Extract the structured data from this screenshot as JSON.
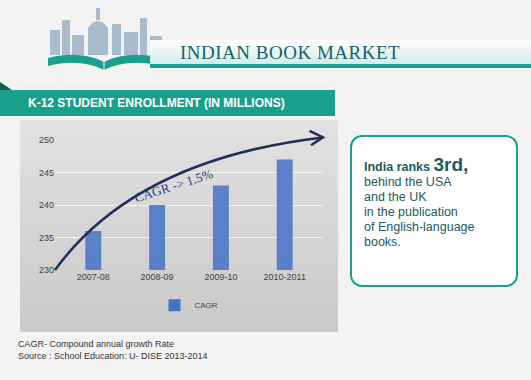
{
  "header": {
    "title": "INDIAN BOOK MARKET"
  },
  "chart_data": {
    "type": "bar",
    "title": "K-12 STUDENT ENROLLMENT (IN MILLIONS)",
    "categories": [
      "2007-08",
      "2008-09",
      "2009-10",
      "2010-2011"
    ],
    "series": [
      {
        "name": "CAGR",
        "color": "#4472c4",
        "values": [
          236,
          240,
          243,
          247
        ]
      }
    ],
    "ylim": [
      230,
      250
    ],
    "yticks": [
      230,
      235,
      240,
      245,
      250
    ],
    "grid": true,
    "data_labels": true,
    "legend": "bottom",
    "annotations": [
      {
        "text": "CAGR -> 1.5%"
      }
    ]
  },
  "callout": {
    "text_before": "India ranks",
    "emphasis": "3rd,",
    "lines": [
      "behind the USA",
      "and the UK",
      "in the publication",
      "of English-language",
      "books."
    ]
  },
  "footnotes": [
    "CAGR- Compound annual growth Rate",
    "Source : School Education: U- DISE 2013-2014"
  ]
}
